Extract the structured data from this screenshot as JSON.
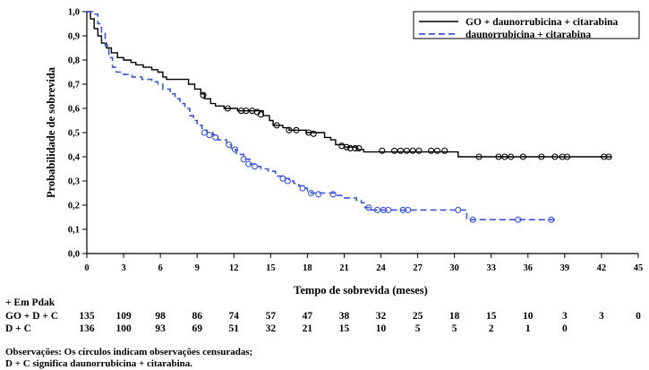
{
  "chart_data": {
    "type": "line",
    "subtype": "kaplan-meier",
    "xlabel": "Tempo de sobrevida (meses)",
    "ylabel": "Probabilidade de sobrevida",
    "xlim": [
      0,
      45
    ],
    "ylim": [
      0,
      1
    ],
    "x_ticks": [
      0,
      3,
      6,
      9,
      12,
      15,
      18,
      21,
      24,
      27,
      30,
      33,
      36,
      39,
      42,
      45
    ],
    "y_ticks": [
      "0,0",
      "0,1",
      "0,2",
      "0,3",
      "0,4",
      "0,5",
      "0,6",
      "0,7",
      "0,8",
      "0,9",
      "1,0"
    ],
    "y_tick_values": [
      0,
      0.1,
      0.2,
      0.3,
      0.4,
      0.5,
      0.6,
      0.7,
      0.8,
      0.9,
      1.0
    ],
    "grid": false,
    "legend_position": "top-right",
    "series": [
      {
        "name": "GO + daunorrubicina + citarabina",
        "color": "#000000",
        "dash": "solid",
        "steps": [
          [
            0,
            1.0
          ],
          [
            0.3,
            0.97
          ],
          [
            0.6,
            0.93
          ],
          [
            0.9,
            0.9
          ],
          [
            1.2,
            0.87
          ],
          [
            1.6,
            0.85
          ],
          [
            2.0,
            0.83
          ],
          [
            2.5,
            0.81
          ],
          [
            3.0,
            0.8
          ],
          [
            3.6,
            0.79
          ],
          [
            4.0,
            0.78
          ],
          [
            4.6,
            0.77
          ],
          [
            5.3,
            0.76
          ],
          [
            5.8,
            0.75
          ],
          [
            6.2,
            0.73
          ],
          [
            6.5,
            0.72
          ],
          [
            8.3,
            0.7
          ],
          [
            8.8,
            0.68
          ],
          [
            9.3,
            0.66
          ],
          [
            9.6,
            0.64
          ],
          [
            10.1,
            0.62
          ],
          [
            10.5,
            0.61
          ],
          [
            11.2,
            0.6
          ],
          [
            12.3,
            0.59
          ],
          [
            14.4,
            0.57
          ],
          [
            14.9,
            0.55
          ],
          [
            15.2,
            0.53
          ],
          [
            16.0,
            0.52
          ],
          [
            16.5,
            0.51
          ],
          [
            17.9,
            0.5
          ],
          [
            19.4,
            0.48
          ],
          [
            19.9,
            0.47
          ],
          [
            20.3,
            0.45
          ],
          [
            21.0,
            0.44
          ],
          [
            22.0,
            0.43
          ],
          [
            22.6,
            0.42
          ],
          [
            30.3,
            0.4
          ],
          [
            42.8,
            0.4
          ]
        ],
        "censored": [
          [
            9.5,
            0.655
          ],
          [
            11.5,
            0.6
          ],
          [
            12.6,
            0.59
          ],
          [
            13.0,
            0.59
          ],
          [
            13.5,
            0.59
          ],
          [
            13.9,
            0.585
          ],
          [
            14.2,
            0.575
          ],
          [
            15.5,
            0.53
          ],
          [
            16.5,
            0.51
          ],
          [
            17.1,
            0.51
          ],
          [
            18.1,
            0.5
          ],
          [
            18.5,
            0.495
          ],
          [
            20.8,
            0.445
          ],
          [
            21.2,
            0.44
          ],
          [
            21.5,
            0.435
          ],
          [
            21.9,
            0.435
          ],
          [
            22.2,
            0.435
          ],
          [
            24.1,
            0.425
          ],
          [
            25.1,
            0.425
          ],
          [
            25.6,
            0.425
          ],
          [
            26.1,
            0.425
          ],
          [
            26.6,
            0.425
          ],
          [
            27.1,
            0.425
          ],
          [
            28.1,
            0.425
          ],
          [
            28.6,
            0.425
          ],
          [
            29.2,
            0.425
          ],
          [
            32.0,
            0.4
          ],
          [
            33.6,
            0.4
          ],
          [
            34.1,
            0.4
          ],
          [
            34.6,
            0.4
          ],
          [
            35.6,
            0.4
          ],
          [
            37.1,
            0.4
          ],
          [
            38.2,
            0.4
          ],
          [
            38.8,
            0.4
          ],
          [
            39.2,
            0.4
          ],
          [
            42.2,
            0.4
          ],
          [
            42.6,
            0.4
          ]
        ]
      },
      {
        "name": "daunorrubicina + citarabina",
        "color": "#3a55e8",
        "dash": "dashed",
        "steps": [
          [
            0,
            1.0
          ],
          [
            0.5,
            0.99
          ],
          [
            0.9,
            0.95
          ],
          [
            1.2,
            0.91
          ],
          [
            1.5,
            0.86
          ],
          [
            1.8,
            0.81
          ],
          [
            2.1,
            0.77
          ],
          [
            2.4,
            0.75
          ],
          [
            3.0,
            0.74
          ],
          [
            3.7,
            0.73
          ],
          [
            4.5,
            0.72
          ],
          [
            5.3,
            0.71
          ],
          [
            5.8,
            0.7
          ],
          [
            6.2,
            0.68
          ],
          [
            6.8,
            0.66
          ],
          [
            7.2,
            0.64
          ],
          [
            7.6,
            0.62
          ],
          [
            8.0,
            0.6
          ],
          [
            8.4,
            0.57
          ],
          [
            8.7,
            0.55
          ],
          [
            9.0,
            0.53
          ],
          [
            9.4,
            0.51
          ],
          [
            9.8,
            0.5
          ],
          [
            10.3,
            0.49
          ],
          [
            10.7,
            0.47
          ],
          [
            11.4,
            0.45
          ],
          [
            11.8,
            0.43
          ],
          [
            12.2,
            0.41
          ],
          [
            12.8,
            0.39
          ],
          [
            13.3,
            0.37
          ],
          [
            13.8,
            0.36
          ],
          [
            14.2,
            0.35
          ],
          [
            14.8,
            0.34
          ],
          [
            15.4,
            0.32
          ],
          [
            16.0,
            0.31
          ],
          [
            16.5,
            0.3
          ],
          [
            16.9,
            0.29
          ],
          [
            17.3,
            0.28
          ],
          [
            17.7,
            0.27
          ],
          [
            18.0,
            0.26
          ],
          [
            18.3,
            0.25
          ],
          [
            20.3,
            0.24
          ],
          [
            20.8,
            0.23
          ],
          [
            22.0,
            0.22
          ],
          [
            22.4,
            0.21
          ],
          [
            22.7,
            0.19
          ],
          [
            23.2,
            0.18
          ],
          [
            31.0,
            0.14
          ],
          [
            38.5,
            0.14
          ]
        ],
        "censored": [
          [
            9.6,
            0.5
          ],
          [
            10.0,
            0.49
          ],
          [
            10.5,
            0.48
          ],
          [
            11.6,
            0.45
          ],
          [
            12.1,
            0.43
          ],
          [
            12.8,
            0.39
          ],
          [
            13.2,
            0.37
          ],
          [
            13.7,
            0.36
          ],
          [
            16.0,
            0.31
          ],
          [
            16.4,
            0.3
          ],
          [
            17.6,
            0.27
          ],
          [
            18.3,
            0.25
          ],
          [
            18.9,
            0.245
          ],
          [
            20.1,
            0.245
          ],
          [
            23.0,
            0.19
          ],
          [
            23.7,
            0.18
          ],
          [
            24.2,
            0.18
          ],
          [
            24.6,
            0.18
          ],
          [
            25.8,
            0.18
          ],
          [
            26.2,
            0.18
          ],
          [
            30.3,
            0.18
          ],
          [
            31.5,
            0.14
          ],
          [
            35.2,
            0.14
          ],
          [
            37.9,
            0.14
          ]
        ]
      }
    ],
    "at_risk": {
      "header": "+ Em Pdak",
      "x_positions": [
        0,
        3,
        6,
        9,
        12,
        15,
        18,
        21,
        24,
        27,
        30,
        33,
        36,
        39,
        42,
        45
      ],
      "rows": [
        {
          "label": "GO + D + C",
          "values": [
            "135",
            "109",
            "98",
            "86",
            "74",
            "57",
            "47",
            "38",
            "32",
            "25",
            "18",
            "15",
            "10",
            "3",
            "3",
            "0"
          ]
        },
        {
          "label": "D + C",
          "values": [
            "136",
            "100",
            "93",
            "69",
            "51",
            "32",
            "21",
            "15",
            "10",
            "5",
            "5",
            "2",
            "1",
            "0",
            "",
            ""
          ]
        }
      ]
    }
  },
  "notes": [
    "Observações: Os círculos indicam observações censuradas;",
    "D + C significa daunorrubicina + citarabina."
  ]
}
